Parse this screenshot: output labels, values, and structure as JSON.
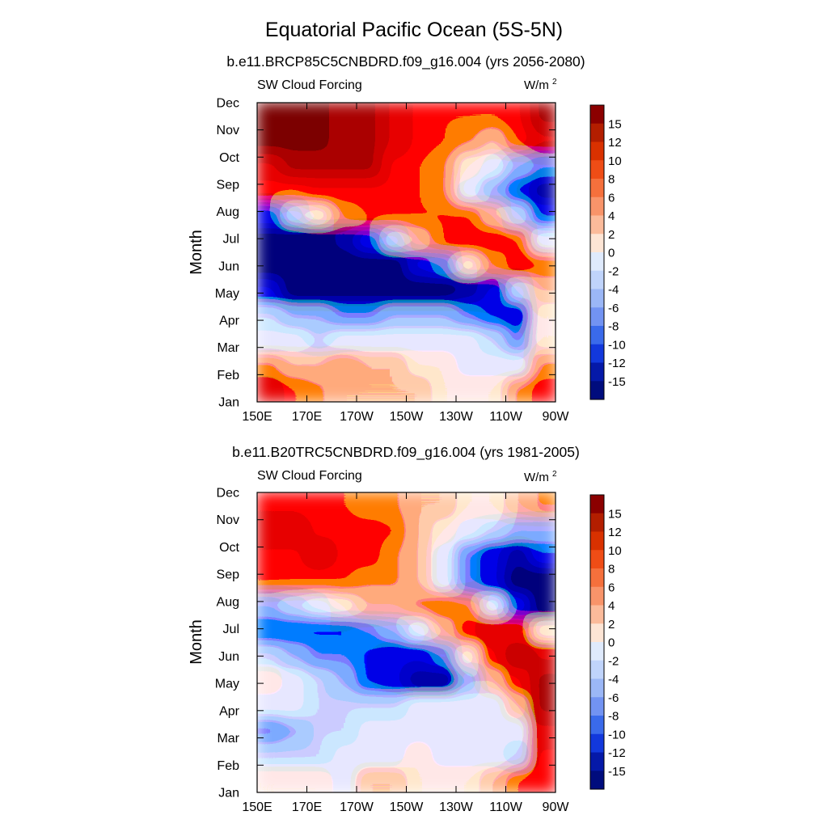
{
  "chart_data": {
    "type": "heatmap",
    "title": "Equatorial Pacific Ocean (5S-5N)",
    "colorbar": {
      "labels": [
        "15",
        "12",
        "10",
        "8",
        "6",
        "4",
        "2",
        "0",
        "-2",
        "-4",
        "-6",
        "-8",
        "-10",
        "-12",
        "-15"
      ],
      "colors": [
        "#8b0000",
        "#b31e00",
        "#d93100",
        "#ef4d16",
        "#f5703c",
        "#f8946a",
        "#fbbb9b",
        "#fde5d5",
        "#dfeafc",
        "#c0d4fb",
        "#9bb7f6",
        "#7293f2",
        "#3a6aeb",
        "#1238dc",
        "#0519a8",
        "#000c7d"
      ]
    },
    "panels": [
      {
        "subtitle": "b.e11.BRCP85C5CNBDRD.f09_g16.004 (yrs 2056-2080)",
        "left_string": "SW Cloud Forcing",
        "units_base": "W/m",
        "units_exp": "2",
        "ylabel": "Month",
        "xtick_labels": [
          "150E",
          "170E",
          "170W",
          "150W",
          "130W",
          "110W",
          "90W"
        ],
        "ytick_labels": [
          "Jan",
          "Feb",
          "Mar",
          "Apr",
          "May",
          "Jun",
          "Jul",
          "Aug",
          "Sep",
          "Oct",
          "Nov",
          "Dec"
        ],
        "grid": [
          [
            10,
            6,
            4,
            3,
            2,
            2,
            2,
            1,
            1,
            1,
            4,
            9
          ],
          [
            4,
            2,
            2,
            4,
            3,
            3,
            1,
            0,
            -2,
            -1,
            -1,
            4
          ],
          [
            -2,
            -2,
            -3,
            -2,
            -1,
            -1,
            -1,
            -1,
            -1,
            -3,
            -7,
            1
          ],
          [
            -4,
            -6,
            -6,
            -7,
            -7,
            -6,
            -6,
            -6,
            -8,
            -10,
            -12,
            0
          ],
          [
            -12,
            -16,
            -16,
            -16,
            -16,
            -16,
            -16,
            -16,
            -14,
            -12,
            -4,
            3
          ],
          [
            -16,
            -16,
            -16,
            -16,
            -16,
            -16,
            -12,
            -8,
            0,
            5,
            8,
            6
          ],
          [
            -16,
            -16,
            -16,
            -14,
            -10,
            -4,
            2,
            7,
            8,
            8,
            6,
            -1
          ],
          [
            -10,
            -4,
            1,
            5,
            6,
            6,
            6,
            6,
            6,
            2,
            -4,
            -10
          ],
          [
            6,
            7,
            8,
            9,
            9,
            8,
            6,
            4,
            -2,
            -6,
            -10,
            -15
          ],
          [
            11,
            12,
            14,
            14,
            12,
            9,
            7,
            4,
            1,
            -2,
            -6,
            -8
          ],
          [
            16,
            16,
            16,
            14,
            13,
            10,
            8,
            6,
            4,
            3,
            6,
            10
          ],
          [
            16,
            16,
            16,
            14,
            13,
            10,
            8,
            6,
            6,
            7,
            9,
            12
          ]
        ]
      },
      {
        "subtitle": "b.e11.B20TRC5CNBDRD.f09_g16.004 (yrs 1981-2005)",
        "left_string": "SW Cloud Forcing",
        "units_base": "W/m",
        "units_exp": "2",
        "ylabel": "Month",
        "xtick_labels": [
          "150E",
          "170E",
          "170W",
          "150W",
          "130W",
          "110W",
          "90W"
        ],
        "ytick_labels": [
          "Jan",
          "Feb",
          "Mar",
          "Apr",
          "May",
          "Jun",
          "Jul",
          "Aug",
          "Sep",
          "Oct",
          "Nov",
          "Dec"
        ],
        "grid": [
          [
            1,
            0,
            0,
            -1,
            2,
            3,
            1,
            0,
            1,
            3,
            6,
            8
          ],
          [
            -3,
            -3,
            -4,
            -2,
            -1,
            -1,
            0,
            -1,
            -1,
            -2,
            -3,
            9
          ],
          [
            -7,
            -5,
            -3,
            -3,
            -2,
            -2,
            -1,
            -1,
            -1,
            -2,
            -1,
            10
          ],
          [
            -2,
            -2,
            -4,
            -3,
            -3,
            -3,
            -2,
            -1,
            -1,
            -1,
            2,
            12
          ],
          [
            0,
            -2,
            -4,
            -6,
            -9,
            -12,
            -15,
            -13,
            -6,
            2,
            9,
            14
          ],
          [
            -4,
            -5,
            -7,
            -8,
            -10,
            -12,
            -12,
            -7,
            1,
            8,
            12,
            10
          ],
          [
            -9,
            -10,
            -10,
            -9,
            -7,
            -5,
            -2,
            3,
            8,
            10,
            9,
            0
          ],
          [
            -6,
            -4,
            -2,
            0,
            2,
            3,
            5,
            6,
            4,
            -2,
            -10,
            -16
          ],
          [
            6,
            6,
            7,
            6,
            5,
            4,
            2,
            -2,
            -7,
            -12,
            -16,
            -16
          ],
          [
            9,
            9,
            10,
            9,
            8,
            5,
            2,
            -2,
            -8,
            -12,
            -13,
            -10
          ],
          [
            11,
            10,
            9,
            9,
            8,
            6,
            3,
            1,
            -2,
            -3,
            -5,
            -5
          ],
          [
            8,
            8,
            7,
            6,
            5,
            4,
            3,
            2,
            1,
            1,
            2,
            4
          ]
        ]
      }
    ]
  }
}
